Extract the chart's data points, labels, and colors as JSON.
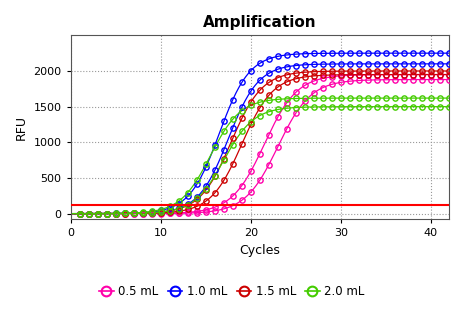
{
  "title": "Amplification",
  "xlabel": "Cycles",
  "ylabel": "RFU",
  "xlim": [
    0,
    42
  ],
  "ylim": [
    -80,
    2500
  ],
  "xticks": [
    0,
    10,
    20,
    30,
    40
  ],
  "yticks": [
    0,
    500,
    1000,
    1500,
    2000
  ],
  "threshold_y": 115,
  "threshold_color": "#ff0000",
  "background_color": "#ffffff",
  "series": [
    {
      "label": "0.5 mL",
      "color": "#ff00aa",
      "midpoints": [
        21.5,
        23.0
      ],
      "plateau": [
        1950,
        1880
      ],
      "k": [
        0.55,
        0.55
      ]
    },
    {
      "label": "1.0 mL",
      "color": "#0000ff",
      "midpoints": [
        16.5,
        17.5
      ],
      "plateau": [
        2250,
        2100
      ],
      "k": [
        0.6,
        0.6
      ]
    },
    {
      "label": "1.5 mL",
      "color": "#cc0000",
      "midpoints": [
        17.8,
        19.0
      ],
      "plateau": [
        2000,
        1950
      ],
      "k": [
        0.58,
        0.58
      ]
    },
    {
      "label": "2.0 mL",
      "color": "#44cc00",
      "midpoints": [
        15.5,
        17.0
      ],
      "plateau": [
        1620,
        1500
      ],
      "k": [
        0.6,
        0.6
      ]
    }
  ],
  "legend_entries": [
    {
      "label": "0.5 mL",
      "color": "#ff00aa"
    },
    {
      "label": "1.0 mL",
      "color": "#0000ff"
    },
    {
      "label": "1.5 mL",
      "color": "#cc0000"
    },
    {
      "label": "2.0 mL",
      "color": "#44cc00"
    }
  ]
}
